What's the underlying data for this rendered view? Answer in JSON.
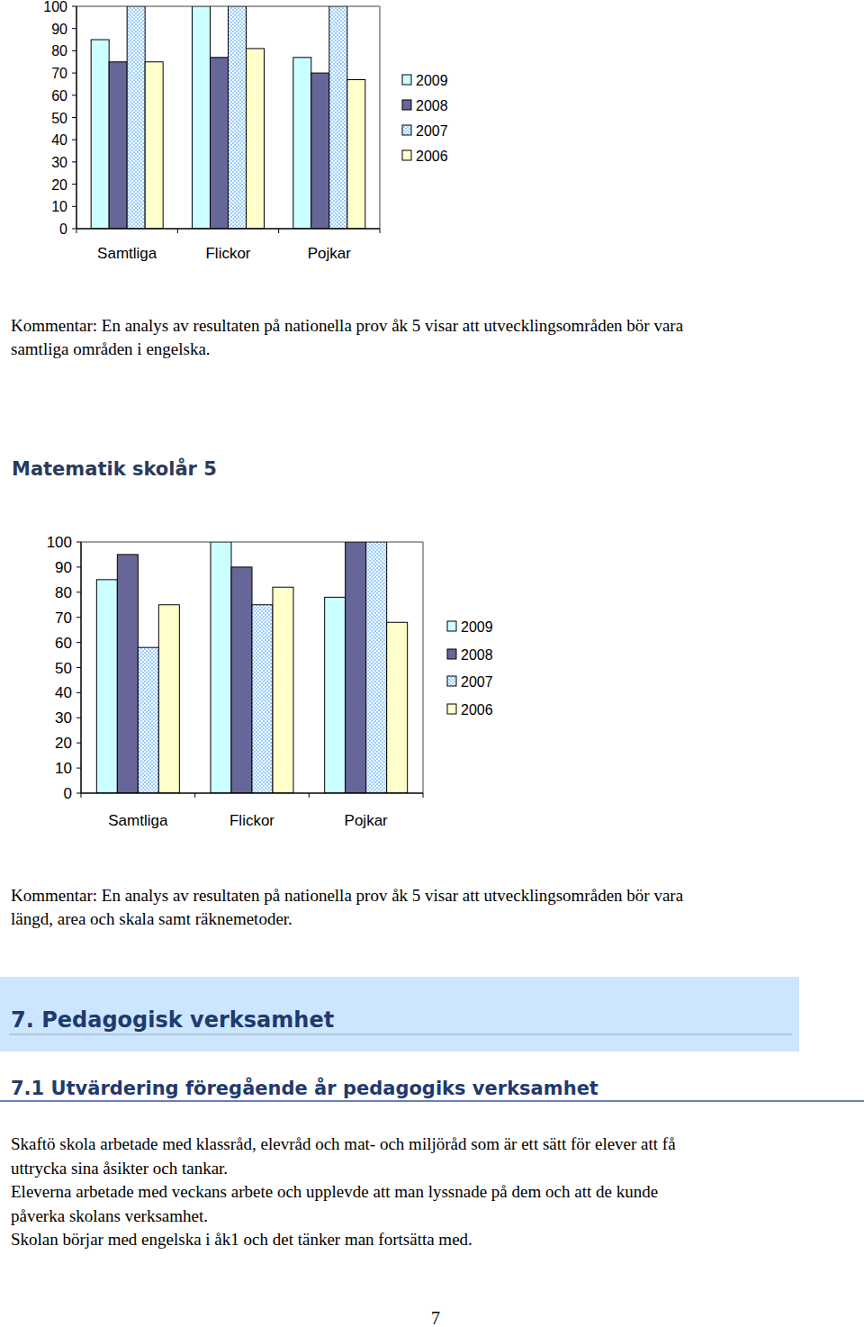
{
  "chart_data": [
    {
      "type": "bar",
      "categories": [
        "Samtliga",
        "Flickor",
        "Pojkar"
      ],
      "series": [
        {
          "name": "2009",
          "color": "#ccffff",
          "values": [
            85,
            100,
            77
          ]
        },
        {
          "name": "2008",
          "color": "#666699",
          "values": [
            75,
            77,
            70
          ]
        },
        {
          "name": "2007",
          "color": "#99ccff",
          "values": [
            100,
            100,
            100
          ]
        },
        {
          "name": "2006",
          "color": "#ffffcc",
          "values": [
            75,
            81,
            67
          ]
        }
      ],
      "ylim": [
        0,
        100
      ],
      "yticks": [
        0,
        10,
        20,
        30,
        40,
        50,
        60,
        70,
        80,
        90,
        100
      ],
      "legend": "right"
    },
    {
      "type": "bar",
      "title": "Matematik skolår 5",
      "categories": [
        "Samtliga",
        "Flickor",
        "Pojkar"
      ],
      "series": [
        {
          "name": "2009",
          "color": "#ccffff",
          "values": [
            85,
            100,
            78
          ]
        },
        {
          "name": "2008",
          "color": "#666699",
          "values": [
            95,
            90,
            100
          ]
        },
        {
          "name": "2007",
          "color": "#99ccff",
          "values": [
            58,
            75,
            100
          ]
        },
        {
          "name": "2006",
          "color": "#ffffcc",
          "values": [
            75,
            82,
            68
          ]
        }
      ],
      "ylim": [
        0,
        100
      ],
      "yticks": [
        0,
        10,
        20,
        30,
        40,
        50,
        60,
        70,
        80,
        90,
        100
      ],
      "legend": "right"
    }
  ],
  "document": {
    "comment_1": [
      "Kommentar: En analys av resultaten på nationella prov åk 5 visar att utvecklingsområden bör vara",
      "samtliga områden i engelska."
    ],
    "comment_2": [
      "Kommentar: En analys av resultaten på nationella prov åk 5 visar att utvecklingsområden bör vara",
      "längd, area och skala samt räknemetoder."
    ],
    "section_heading": "7. Pedagogisk verksamhet",
    "subsection_heading": "7.1 Utvärdering föregående år pedagogiks verksamhet",
    "paragraph": [
      "Skaftö skola arbetade med klassråd, elevråd och mat- och miljöråd som är ett sätt för elever att få",
      "uttrycka sina åsikter och tankar.",
      "Eleverna arbetade med veckans arbete och upplevde att man lyssnade på dem och att de kunde",
      "påverka skolans verksamhet.",
      "Skolan börjar med engelska i åk1 och det tänker man fortsätta med."
    ],
    "page_number": "7"
  }
}
